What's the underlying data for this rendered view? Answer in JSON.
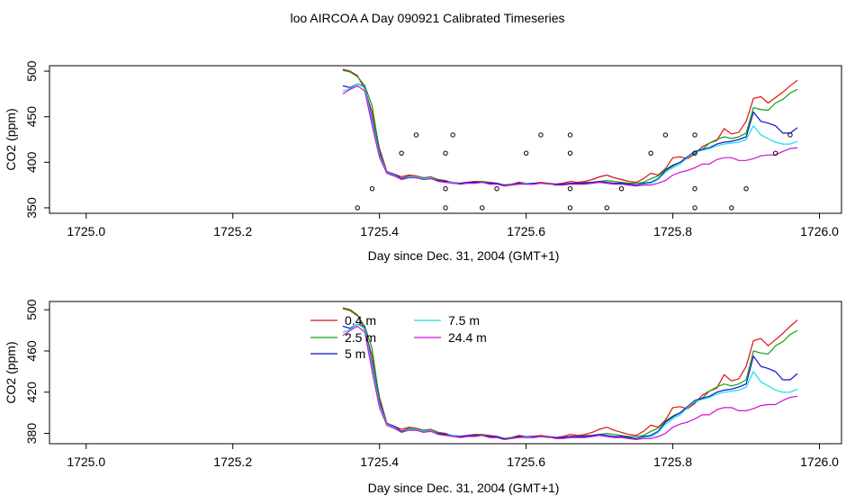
{
  "title": "loo AIRCOA A  Day 090921  Calibrated Timeseries",
  "colors": {
    "0.4 m": "#e01010",
    "2.5 m": "#10a010",
    "5 m": "#1010d0",
    "7.5 m": "#10e0e0",
    "24.4 m": "#d010d0",
    "points": "#000000"
  },
  "chart_data": [
    {
      "type": "line",
      "xlabel": "Day since Dec. 31, 2004 (GMT+1)",
      "ylabel": "CO2 (ppm)",
      "xlim": [
        1724.95,
        1726.03
      ],
      "ylim": [
        344,
        506
      ],
      "xticks": [
        "1725.0",
        "1725.2",
        "1725.4",
        "1725.6",
        "1725.8",
        "1726.0"
      ],
      "yticks": [
        "350",
        "400",
        "450",
        "500"
      ],
      "x": [
        1725.35,
        1725.36,
        1725.37,
        1725.38,
        1725.39,
        1725.4,
        1725.41,
        1725.42,
        1725.43,
        1725.44,
        1725.45,
        1725.46,
        1725.47,
        1725.48,
        1725.49,
        1725.5,
        1725.51,
        1725.52,
        1725.53,
        1725.54,
        1725.55,
        1725.56,
        1725.57,
        1725.58,
        1725.59,
        1725.6,
        1725.61,
        1725.62,
        1725.63,
        1725.64,
        1725.65,
        1725.66,
        1725.67,
        1725.68,
        1725.69,
        1725.7,
        1725.71,
        1725.72,
        1725.73,
        1725.74,
        1725.75,
        1725.76,
        1725.77,
        1725.78,
        1725.79,
        1725.8,
        1725.81,
        1725.82,
        1725.83,
        1725.84,
        1725.85,
        1725.86,
        1725.87,
        1725.88,
        1725.89,
        1725.9,
        1725.91,
        1725.92,
        1725.93,
        1725.94,
        1725.95,
        1725.96,
        1725.97
      ],
      "series": [
        {
          "name": "0.4 m",
          "values": [
            502,
            500,
            495,
            480,
            455,
            415,
            390,
            387,
            384,
            386,
            385,
            383,
            384,
            381,
            380,
            377,
            377,
            378,
            379,
            379,
            378,
            377,
            375,
            376,
            378,
            377,
            377,
            378,
            377,
            376,
            377,
            379,
            378,
            379,
            381,
            384,
            386,
            383,
            381,
            379,
            378,
            382,
            388,
            386,
            393,
            405,
            406,
            404,
            409,
            417,
            421,
            424,
            437,
            431,
            433,
            445,
            470,
            472,
            465,
            471,
            477,
            484,
            490
          ]
        },
        {
          "name": "2.5 m",
          "values": [
            501,
            499,
            494,
            484,
            462,
            412,
            388,
            385,
            382,
            385,
            384,
            383,
            383,
            381,
            379,
            378,
            376,
            377,
            378,
            379,
            377,
            376,
            375,
            376,
            377,
            376,
            376,
            377,
            376,
            376,
            376,
            377,
            377,
            378,
            378,
            379,
            380,
            379,
            378,
            377,
            377,
            378,
            382,
            385,
            392,
            397,
            400,
            406,
            410,
            414,
            421,
            425,
            428,
            426,
            428,
            432,
            460,
            458,
            457,
            465,
            469,
            476,
            480
          ]
        },
        {
          "name": "5 m",
          "values": [
            484,
            482,
            486,
            483,
            448,
            410,
            389,
            387,
            382,
            384,
            383,
            382,
            382,
            380,
            379,
            378,
            377,
            378,
            378,
            378,
            377,
            377,
            375,
            375,
            377,
            377,
            377,
            377,
            377,
            376,
            376,
            377,
            377,
            377,
            378,
            379,
            378,
            377,
            377,
            376,
            375,
            377,
            378,
            382,
            391,
            396,
            400,
            406,
            412,
            414,
            416,
            420,
            422,
            423,
            425,
            428,
            455,
            445,
            443,
            440,
            432,
            432,
            438
          ]
        },
        {
          "name": "7.5 m",
          "values": [
            478,
            481,
            486,
            482,
            445,
            408,
            389,
            386,
            381,
            384,
            384,
            382,
            383,
            379,
            378,
            378,
            376,
            377,
            377,
            378,
            376,
            376,
            374,
            375,
            376,
            377,
            376,
            377,
            377,
            375,
            375,
            376,
            376,
            376,
            377,
            378,
            377,
            376,
            376,
            375,
            374,
            376,
            377,
            381,
            389,
            394,
            398,
            405,
            411,
            413,
            415,
            418,
            420,
            421,
            422,
            425,
            440,
            430,
            426,
            422,
            420,
            420,
            423
          ]
        },
        {
          "name": "24.4 m",
          "values": [
            475,
            480,
            484,
            478,
            440,
            405,
            388,
            385,
            381,
            383,
            383,
            381,
            382,
            379,
            378,
            377,
            376,
            377,
            377,
            378,
            376,
            376,
            374,
            375,
            376,
            376,
            376,
            377,
            377,
            375,
            375,
            376,
            376,
            376,
            377,
            378,
            377,
            376,
            376,
            375,
            374,
            375,
            375,
            377,
            380,
            386,
            389,
            391,
            394,
            398,
            398,
            403,
            405,
            405,
            402,
            402,
            404,
            407,
            408,
            408,
            412,
            415,
            416
          ]
        }
      ],
      "points": [
        [
          1725.37,
          350
        ],
        [
          1725.39,
          371
        ],
        [
          1725.43,
          410
        ],
        [
          1725.45,
          430
        ],
        [
          1725.49,
          350
        ],
        [
          1725.49,
          371
        ],
        [
          1725.49,
          410
        ],
        [
          1725.5,
          430
        ],
        [
          1725.54,
          350
        ],
        [
          1725.56,
          371
        ],
        [
          1725.6,
          410
        ],
        [
          1725.62,
          430
        ],
        [
          1725.66,
          350
        ],
        [
          1725.66,
          371
        ],
        [
          1725.66,
          410
        ],
        [
          1725.66,
          430
        ],
        [
          1725.71,
          350
        ],
        [
          1725.73,
          371
        ],
        [
          1725.77,
          410
        ],
        [
          1725.79,
          430
        ],
        [
          1725.83,
          350
        ],
        [
          1725.83,
          371
        ],
        [
          1725.83,
          410
        ],
        [
          1725.83,
          430
        ],
        [
          1725.88,
          350
        ],
        [
          1725.9,
          371
        ],
        [
          1725.94,
          410
        ],
        [
          1725.96,
          430
        ]
      ]
    },
    {
      "type": "line",
      "xlabel": "Day since Dec. 31, 2004 (GMT+1)",
      "ylabel": "CO2 (ppm)",
      "xlim": [
        1724.95,
        1726.03
      ],
      "ylim": [
        370,
        508
      ],
      "xticks": [
        "1725.0",
        "1725.2",
        "1725.4",
        "1725.6",
        "1725.8",
        "1726.0"
      ],
      "yticks": [
        "380",
        "420",
        "460",
        "500"
      ],
      "legend": {
        "placement": "top-center",
        "items": [
          "0.4 m",
          "2.5 m",
          "5 m",
          "7.5 m",
          "24.4 m"
        ]
      },
      "x": "same as first panel",
      "series_ref": "same values as first panel"
    }
  ]
}
